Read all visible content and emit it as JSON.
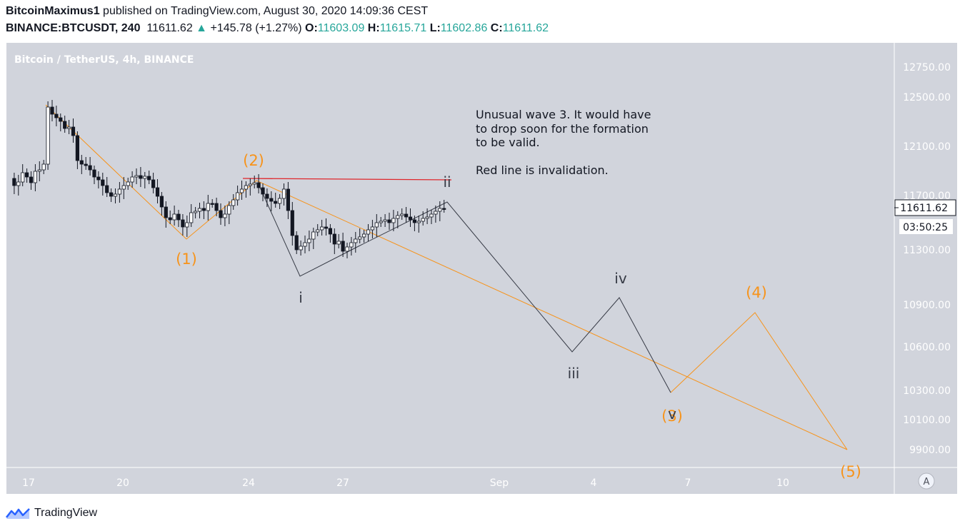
{
  "header": {
    "author": "BitcoinMaximus1",
    "published_text": " published on TradingView.com, August 30, 2020 14:09:36 CEST",
    "symbol": "BINANCE:BTCUSDT, 240",
    "last": "11611.62",
    "change": "+145.78 (+1.27%)",
    "o_label": "O:",
    "o_value": "11603.09",
    "h_label": "H:",
    "h_value": "11615.71",
    "l_label": "L:",
    "l_value": "11602.86",
    "c_label": "C:",
    "c_value": "11611.62"
  },
  "chart_data": {
    "type": "candlestick",
    "title": "Bitcoin / TetherUS, 4h, BINANCE",
    "y_ticks": [
      "12750.00",
      "12500.00",
      "12100.00",
      "11700.00",
      "11300.00",
      "10900.00",
      "10600.00",
      "10300.00",
      "10100.00",
      "9900.00"
    ],
    "x_ticks": [
      "17",
      "20",
      "24",
      "27",
      "Sep",
      "4",
      "7",
      "10"
    ],
    "price_label": "11611.62",
    "countdown_label": "03:50:25",
    "auto_scale_label": "A",
    "annotation_lines": [
      "Unusual wave 3. It would have",
      "to drop soon for the formation",
      "to be valid.",
      "",
      "Red line is invalidation."
    ],
    "wave_labels_major": [
      "(1)",
      "(2)",
      "(3)",
      "(4)",
      "(5)"
    ],
    "wave_labels_minor": [
      "i",
      "ii",
      "iii",
      "iv",
      "v"
    ],
    "colors": {
      "background": "#d1d4dc",
      "orange": "#f7931a",
      "dark": "#363a45",
      "red": "#e0262b",
      "up_candle": "#ffffff",
      "down_candle": "#131722"
    }
  },
  "footer": {
    "brand": "TradingView"
  }
}
